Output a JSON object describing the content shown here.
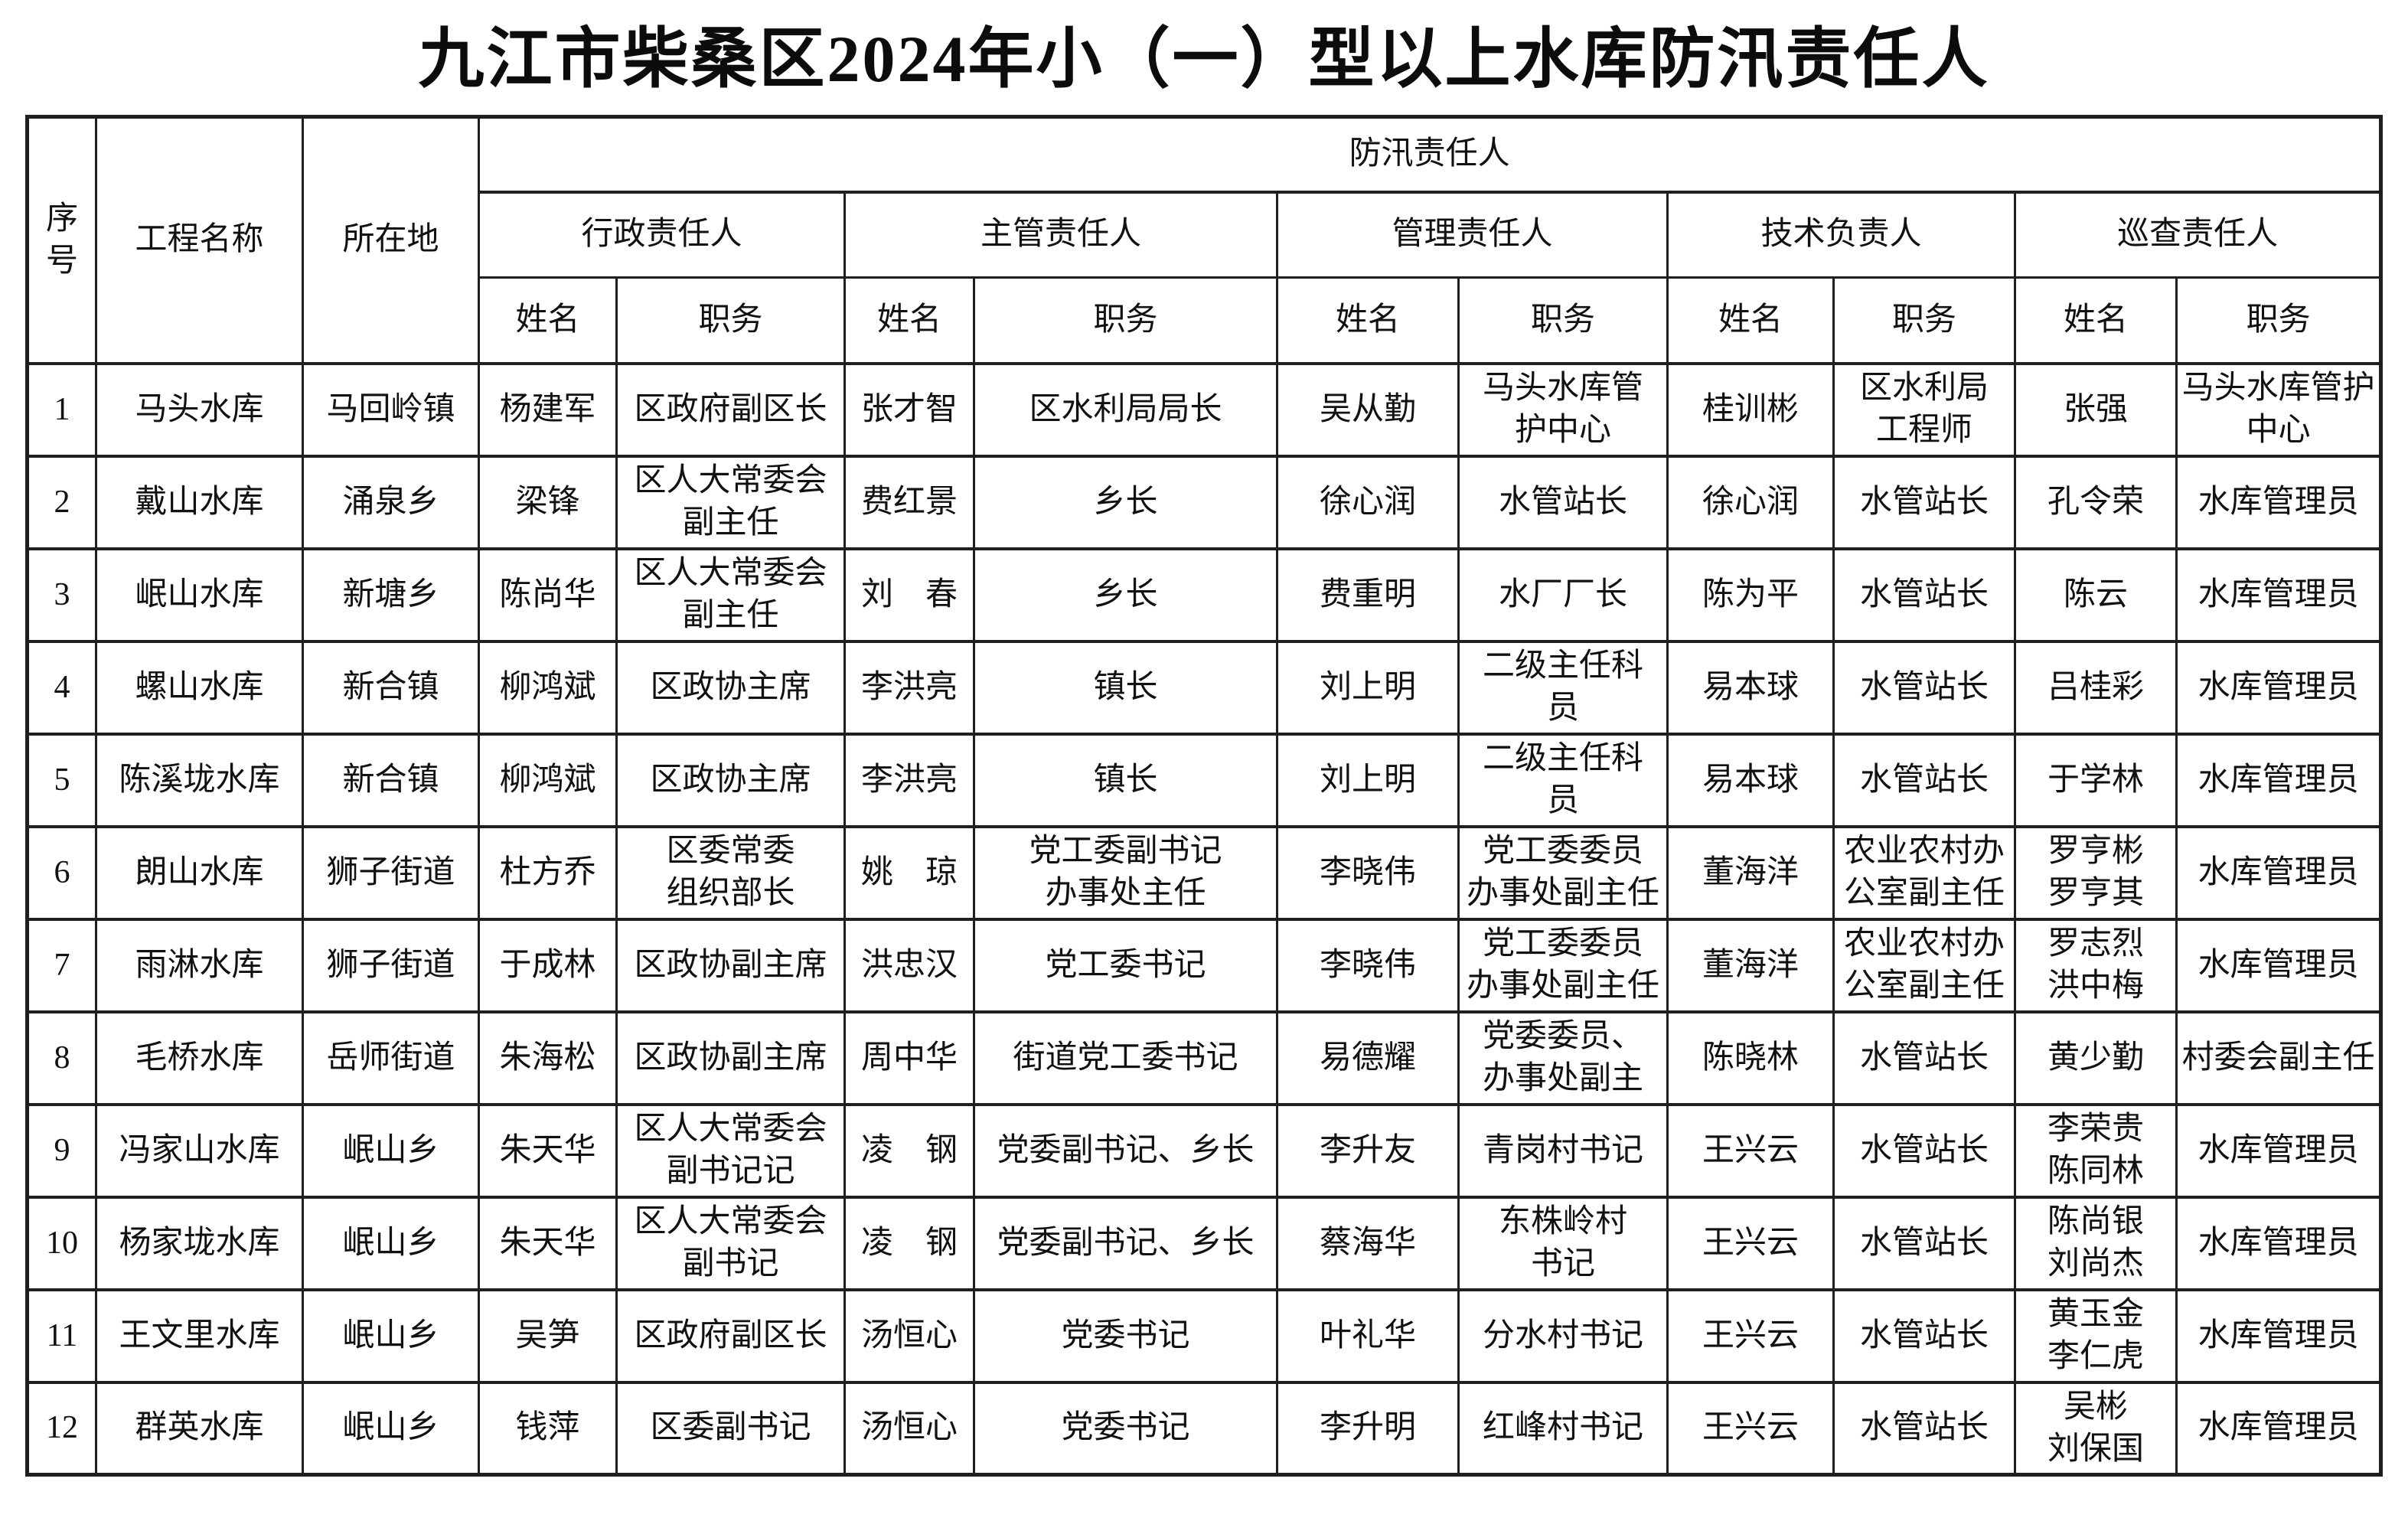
{
  "title": "九江市柴桑区2024年小（一）型以上水库防汛责任人",
  "table": {
    "header": {
      "serial": "序\n号",
      "project": "工程名称",
      "location": "所在地",
      "group": "防汛责任人",
      "roles": [
        "行政责任人",
        "主管责任人",
        "管理责任人",
        "技术负责人",
        "巡查责任人"
      ],
      "name_label": "姓名",
      "position_label": "职务"
    },
    "rows": [
      {
        "no": "1",
        "project": "马头水库",
        "location": "马回岭镇",
        "cells": [
          "杨建军",
          "区政府副区长",
          "张才智",
          "区水利局局长",
          "吴从勤",
          "马头水库管\n护中心",
          "桂训彬",
          "区水利局\n工程师",
          "张强",
          "马头水库管护\n中心"
        ]
      },
      {
        "no": "2",
        "project": "戴山水库",
        "location": "涌泉乡",
        "cells": [
          "梁锋",
          "区人大常委会\n副主任",
          "费红景",
          "乡长",
          "徐心润",
          "水管站长",
          "徐心润",
          "水管站长",
          "孔令荣",
          "水库管理员"
        ]
      },
      {
        "no": "3",
        "project": "岷山水库",
        "location": "新塘乡",
        "cells": [
          "陈尚华",
          "区人大常委会\n副主任",
          "刘　春",
          "乡长",
          "费重明",
          "水厂厂长",
          "陈为平",
          "水管站长",
          "陈云",
          "水库管理员"
        ]
      },
      {
        "no": "4",
        "project": "螺山水库",
        "location": "新合镇",
        "cells": [
          "柳鸿斌",
          "区政协主席",
          "李洪亮",
          "镇长",
          "刘上明",
          "二级主任科\n员",
          "易本球",
          "水管站长",
          "吕桂彩",
          "水库管理员"
        ]
      },
      {
        "no": "5",
        "project": "陈溪垅水库",
        "location": "新合镇",
        "cells": [
          "柳鸿斌",
          "区政协主席",
          "李洪亮",
          "镇长",
          "刘上明",
          "二级主任科\n员",
          "易本球",
          "水管站长",
          "于学林",
          "水库管理员"
        ]
      },
      {
        "no": "6",
        "project": "朗山水库",
        "location": "狮子街道",
        "cells": [
          "杜方乔",
          "区委常委\n组织部长",
          "姚　琼",
          "党工委副书记\n办事处主任",
          "李晓伟",
          "党工委委员\n办事处副主任",
          "董海洋",
          "农业农村办\n公室副主任",
          "罗亨彬\n罗亨其",
          "水库管理员"
        ]
      },
      {
        "no": "7",
        "project": "雨淋水库",
        "location": "狮子街道",
        "cells": [
          "于成林",
          "区政协副主席",
          "洪忠汉",
          "党工委书记",
          "李晓伟",
          "党工委委员\n办事处副主任",
          "董海洋",
          "农业农村办\n公室副主任",
          "罗志烈\n洪中梅",
          "水库管理员"
        ]
      },
      {
        "no": "8",
        "project": "毛桥水库",
        "location": "岳师街道",
        "cells": [
          "朱海松",
          "区政协副主席",
          "周中华",
          "街道党工委书记",
          "易德耀",
          "党委委员、\n办事处副主",
          "陈晓林",
          "水管站长",
          "黄少勤",
          "村委会副主任"
        ]
      },
      {
        "no": "9",
        "project": "冯家山水库",
        "location": "岷山乡",
        "cells": [
          "朱天华",
          "区人大常委会\n副书记记",
          "凌　钢",
          "党委副书记、乡长",
          "李升友",
          "青岗村书记",
          "王兴云",
          "水管站长",
          "李荣贵\n陈同林",
          "水库管理员"
        ]
      },
      {
        "no": "10",
        "project": "杨家垅水库",
        "location": "岷山乡",
        "cells": [
          "朱天华",
          "区人大常委会\n副书记",
          "凌　钢",
          "党委副书记、乡长",
          "蔡海华",
          "东株岭村\n书记",
          "王兴云",
          "水管站长",
          "陈尚银\n刘尚杰",
          "水库管理员"
        ]
      },
      {
        "no": "11",
        "project": "王文里水库",
        "location": "岷山乡",
        "cells": [
          "吴笋",
          "区政府副区长",
          "汤恒心",
          "党委书记",
          "叶礼华",
          "分水村书记",
          "王兴云",
          "水管站长",
          "黄玉金\n李仁虎",
          "水库管理员"
        ]
      },
      {
        "no": "12",
        "project": "群英水库",
        "location": "岷山乡",
        "cells": [
          "钱萍",
          "区委副书记",
          "汤恒心",
          "党委书记",
          "李升明",
          "红峰村书记",
          "王兴云",
          "水管站长",
          "吴彬\n刘保国",
          "水库管理员"
        ]
      }
    ]
  }
}
